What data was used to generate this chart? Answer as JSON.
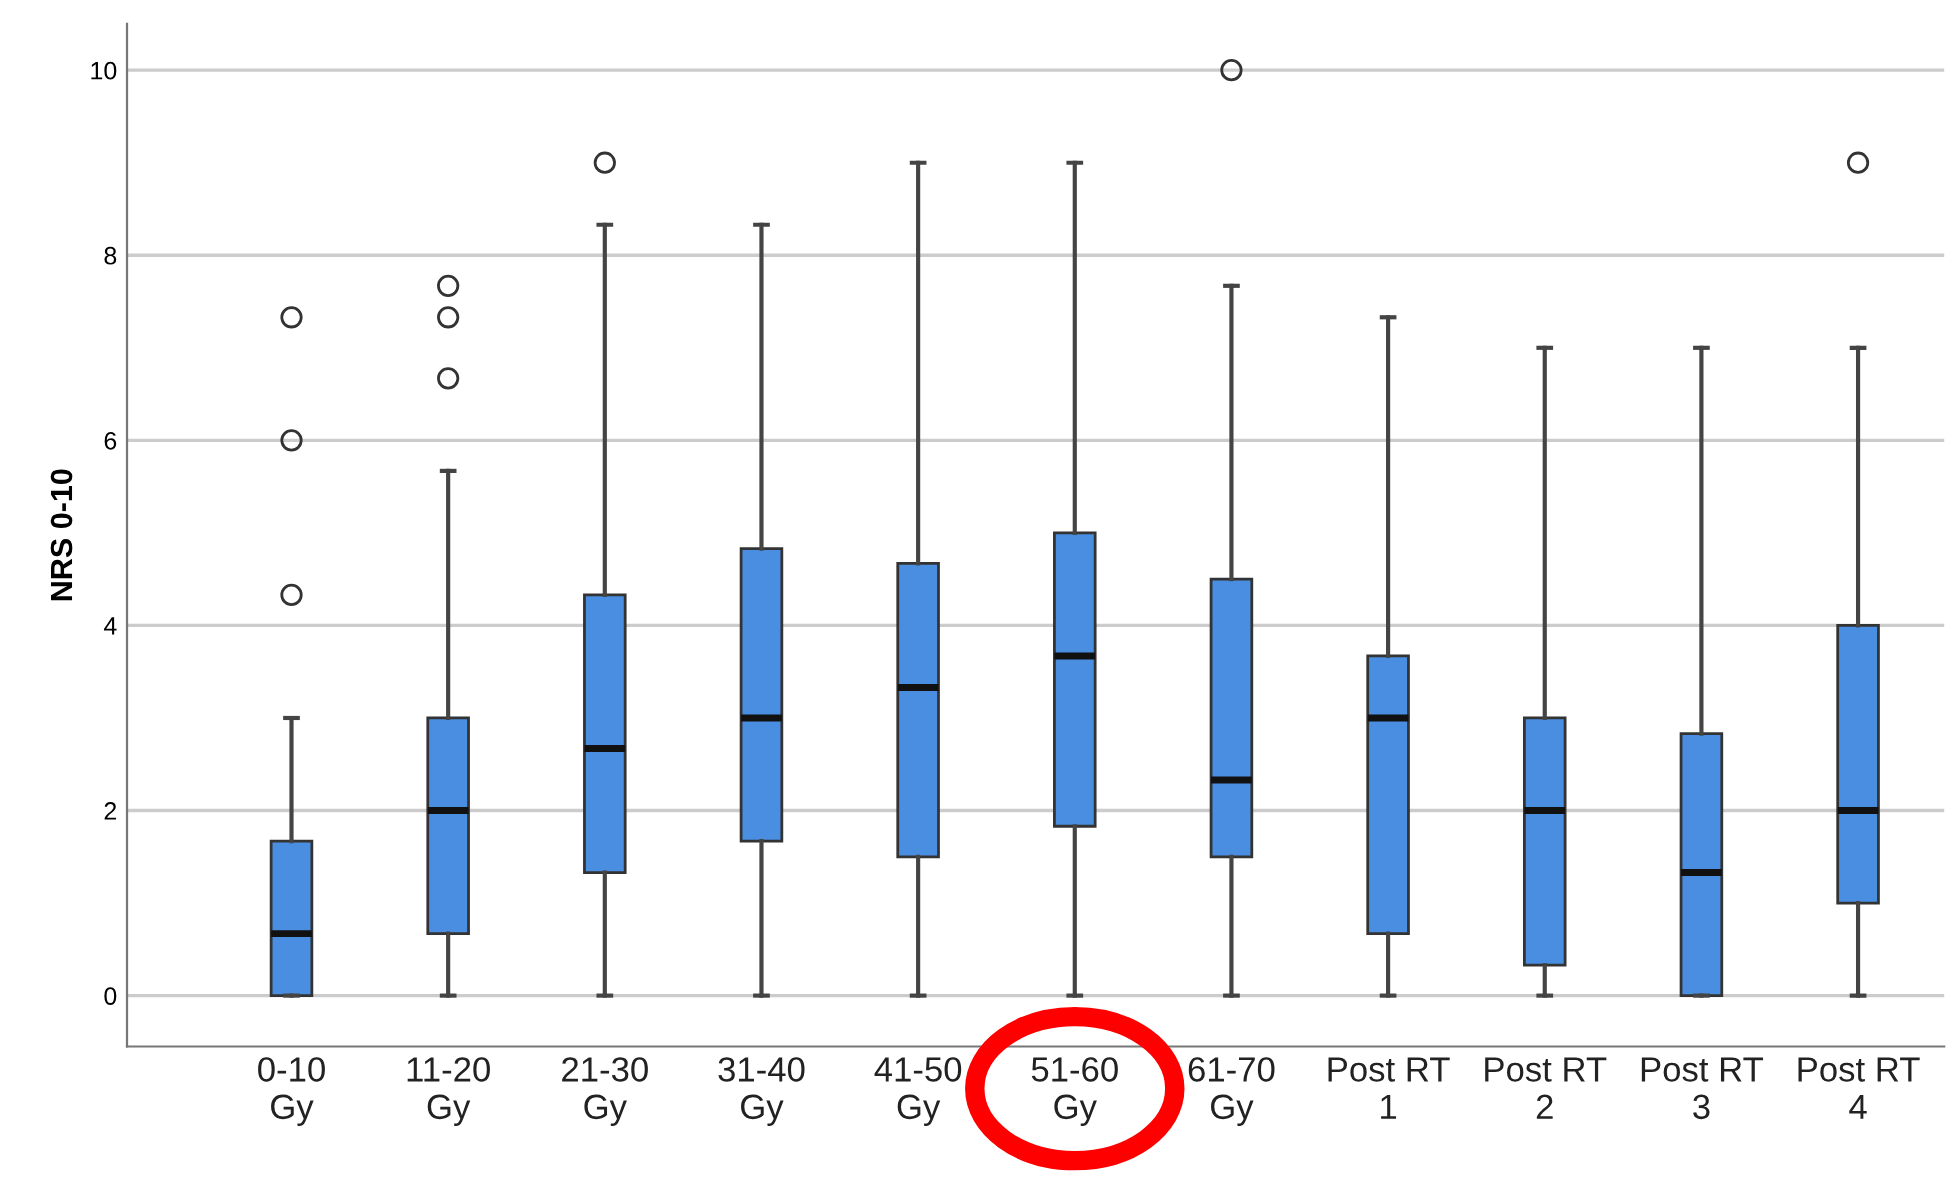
{
  "chart_data": {
    "type": "box",
    "ylabel": "NRS 0-10",
    "categories": [
      "0-10\nGy",
      "11-20\nGy",
      "21-30\nGy",
      "31-40\nGy",
      "41-50\nGy",
      "51-60\nGy",
      "61-70\nGy",
      "Post RT\n1",
      "Post RT\n2",
      "Post RT\n3",
      "Post RT\n4"
    ],
    "boxes": [
      {
        "low": 0,
        "q1": 0,
        "median": 0.67,
        "q3": 1.67,
        "high": 3,
        "outliers": [
          4.33,
          6,
          7.33
        ]
      },
      {
        "low": 0,
        "q1": 0.67,
        "median": 2,
        "q3": 3,
        "high": 5.67,
        "outliers": [
          6.67,
          7.33,
          7.67
        ]
      },
      {
        "low": 0,
        "q1": 1.33,
        "median": 2.67,
        "q3": 4.33,
        "high": 8.33,
        "outliers": [
          9
        ]
      },
      {
        "low": 0,
        "q1": 1.67,
        "median": 3,
        "q3": 4.83,
        "high": 8.33
      },
      {
        "low": 0,
        "q1": 1.5,
        "median": 3.33,
        "q3": 4.67,
        "high": 9
      },
      {
        "low": 0,
        "q1": 1.83,
        "median": 3.67,
        "q3": 5,
        "high": 9
      },
      {
        "low": 0,
        "q1": 1.5,
        "median": 2.33,
        "q3": 4.5,
        "high": 7.67,
        "outliers": [
          10
        ]
      },
      {
        "low": 0,
        "q1": 0.67,
        "median": 3,
        "q3": 3.67,
        "high": 7.33
      },
      {
        "low": 0,
        "q1": 0.33,
        "median": 2,
        "q3": 3,
        "high": 7
      },
      {
        "low": 0,
        "q1": 0,
        "median": 1.33,
        "q3": 2.83,
        "high": 7
      },
      {
        "low": 0,
        "q1": 1,
        "median": 2,
        "q3": 4,
        "high": 7,
        "outliers": [
          9
        ]
      }
    ],
    "color": "#4a8ee2",
    "ylim": [
      -0.55,
      10.5
    ],
    "yticks": [
      0,
      2,
      4,
      6,
      8,
      10
    ],
    "grid": "y"
  }
}
